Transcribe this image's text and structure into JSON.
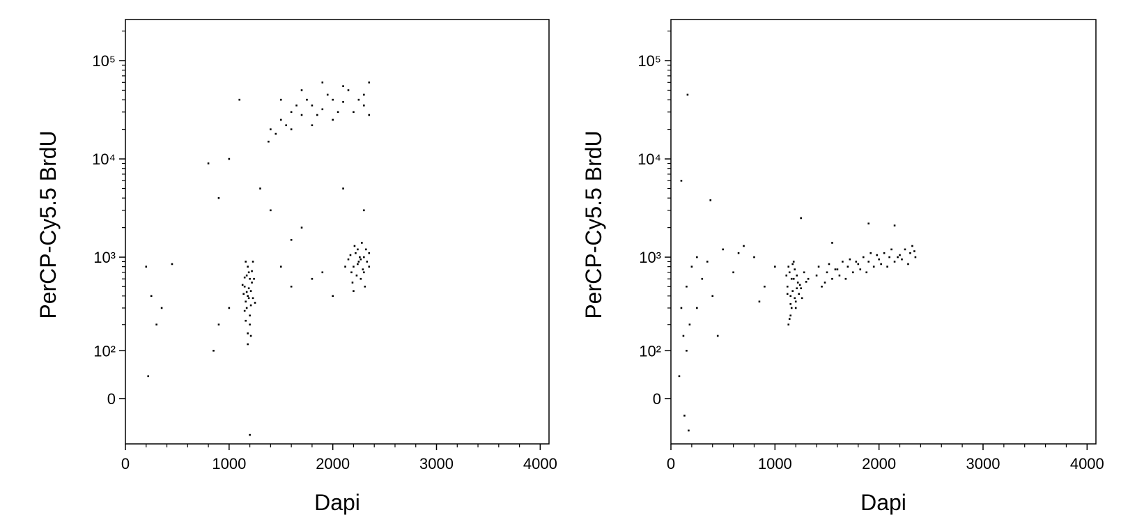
{
  "chart_data": [
    {
      "type": "scatter",
      "xlabel": "Dapi",
      "ylabel": "PerCP-Cy5.5 BrdU",
      "color": "#000000",
      "yscale": "logicle",
      "xlim": [
        0,
        4085
      ],
      "ylim": [
        -93,
        262000
      ],
      "xticks": [
        0,
        1000,
        2000,
        3000,
        4000
      ],
      "xminorticks": [
        200,
        400,
        600,
        800,
        1200,
        1400,
        1600,
        1800,
        2200,
        2400,
        2600,
        2800,
        3200,
        3400,
        3600,
        3800
      ],
      "yticks": [
        0,
        {
          "value": 100,
          "label": "10²"
        },
        {
          "value": 1000,
          "label": "10³"
        },
        {
          "value": 10000,
          "label": "10⁴"
        },
        {
          "value": 100000,
          "label": "10⁵"
        }
      ],
      "yminorticks": [
        200,
        300,
        400,
        500,
        600,
        700,
        800,
        900,
        2000,
        3000,
        4000,
        5000,
        6000,
        7000,
        8000,
        9000,
        20000,
        30000,
        40000,
        50000,
        60000,
        70000,
        80000,
        90000,
        200000
      ],
      "x": [
        1150,
        1180,
        1200,
        1170,
        1210,
        1190,
        1160,
        1220,
        1140,
        1200,
        1180,
        1230,
        1170,
        1150,
        1210,
        1190,
        1160,
        1240,
        1130,
        1200,
        1180,
        1220,
        1170,
        1250,
        1150,
        1190,
        1210,
        1160,
        1230,
        1180,
        2200,
        2250,
        2300,
        2180,
        2220,
        2270,
        2320,
        2240,
        2150,
        2290,
        2210,
        2330,
        2260,
        2190,
        2350,
        2230,
        2280,
        2170,
        2310,
        2240,
        2200,
        2350,
        2120,
        2270,
        2300,
        1400,
        1500,
        1600,
        1700,
        1800,
        1900,
        2000,
        2100,
        2200,
        2300,
        1450,
        1550,
        1650,
        1750,
        1850,
        1950,
        2050,
        2150,
        2250,
        2350,
        1380,
        1600,
        1800,
        2000,
        2300,
        1700,
        1900,
        2100,
        1500,
        2350,
        200,
        250,
        300,
        350,
        450,
        800,
        900,
        1000,
        1100,
        1300,
        1400,
        1600,
        1700,
        1500,
        1600,
        1800,
        1900,
        2000,
        2100,
        2300,
        900,
        850,
        1000,
        220,
        1200
      ],
      "y": [
        500,
        400,
        600,
        300,
        450,
        700,
        350,
        550,
        420,
        250,
        800,
        380,
        650,
        280,
        320,
        480,
        900,
        600,
        520,
        200,
        160,
        720,
        440,
        340,
        620,
        380,
        150,
        220,
        900,
        120,
        800,
        900,
        1000,
        700,
        1100,
        600,
        1200,
        850,
        950,
        750,
        1300,
        900,
        1000,
        550,
        800,
        650,
        1400,
        1050,
        500,
        1200,
        450,
        1100,
        800,
        950,
        700,
        20000,
        25000,
        30000,
        28000,
        35000,
        32000,
        40000,
        38000,
        30000,
        35000,
        18000,
        22000,
        35000,
        40000,
        28000,
        45000,
        30000,
        50000,
        40000,
        28000,
        15000,
        20000,
        22000,
        25000,
        45000,
        50000,
        60000,
        55000,
        40000,
        60000,
        800,
        400,
        200,
        300,
        850,
        9000,
        4000,
        10000,
        40000,
        5000,
        3000,
        1500,
        2000,
        800,
        500,
        600,
        700,
        400,
        5000,
        3000,
        200,
        100,
        300,
        40,
        -70
      ]
    },
    {
      "type": "scatter",
      "xlabel": "Dapi",
      "ylabel": "PerCP-Cy5.5 BrdU",
      "color": "#000000",
      "yscale": "logicle",
      "xlim": [
        0,
        4085
      ],
      "ylim": [
        -93,
        262000
      ],
      "xticks": [
        0,
        1000,
        2000,
        3000,
        4000
      ],
      "xminorticks": [
        200,
        400,
        600,
        800,
        1200,
        1400,
        1600,
        1800,
        2200,
        2400,
        2600,
        2800,
        3200,
        3400,
        3600,
        3800
      ],
      "yticks": [
        0,
        {
          "value": 100,
          "label": "10²"
        },
        {
          "value": 1000,
          "label": "10³"
        },
        {
          "value": 10000,
          "label": "10⁴"
        },
        {
          "value": 100000,
          "label": "10⁵"
        }
      ],
      "yminorticks": [
        200,
        300,
        400,
        500,
        600,
        700,
        800,
        900,
        2000,
        3000,
        4000,
        5000,
        6000,
        7000,
        8000,
        9000,
        20000,
        30000,
        40000,
        50000,
        60000,
        70000,
        80000,
        90000,
        200000
      ],
      "x": [
        1120,
        1150,
        1180,
        1200,
        1140,
        1170,
        1220,
        1160,
        1130,
        1190,
        1210,
        1150,
        1250,
        1180,
        1120,
        1240,
        1200,
        1160,
        1280,
        1140,
        1300,
        1170,
        1230,
        1110,
        1260,
        1190,
        1150,
        1320,
        1210,
        1130,
        1400,
        1500,
        1600,
        1700,
        1800,
        1900,
        2000,
        2100,
        2200,
        2300,
        1450,
        1550,
        1650,
        1750,
        1850,
        1950,
        2050,
        2150,
        2250,
        2350,
        1420,
        1520,
        1620,
        1720,
        1820,
        1920,
        2020,
        2120,
        2220,
        2320,
        1480,
        1580,
        1680,
        1780,
        1880,
        1980,
        2080,
        2180,
        2280,
        2340,
        100,
        120,
        150,
        180,
        200,
        250,
        300,
        350,
        400,
        500,
        600,
        700,
        800,
        900,
        1000,
        150,
        250,
        450,
        650,
        850,
        80,
        130,
        100,
        170,
        1900,
        160,
        380,
        1250,
        1550,
        2150
      ],
      "y": [
        500,
        400,
        600,
        350,
        700,
        450,
        550,
        300,
        800,
        380,
        650,
        250,
        480,
        900,
        420,
        520,
        300,
        600,
        700,
        230,
        560,
        850,
        420,
        650,
        380,
        750,
        330,
        600,
        480,
        200,
        650,
        700,
        750,
        800,
        850,
        900,
        950,
        1000,
        1050,
        1100,
        500,
        600,
        900,
        700,
        1000,
        800,
        1100,
        900,
        1200,
        1000,
        800,
        850,
        650,
        950,
        750,
        1100,
        850,
        1200,
        950,
        1300,
        550,
        750,
        600,
        900,
        700,
        1050,
        800,
        1000,
        850,
        1150,
        300,
        150,
        500,
        200,
        800,
        1000,
        600,
        900,
        400,
        1200,
        700,
        1300,
        1000,
        500,
        800,
        100,
        300,
        150,
        1100,
        350,
        40,
        -30,
        6000,
        -60,
        2200,
        45000,
        3800,
        2500,
        1400,
        2100
      ]
    }
  ]
}
